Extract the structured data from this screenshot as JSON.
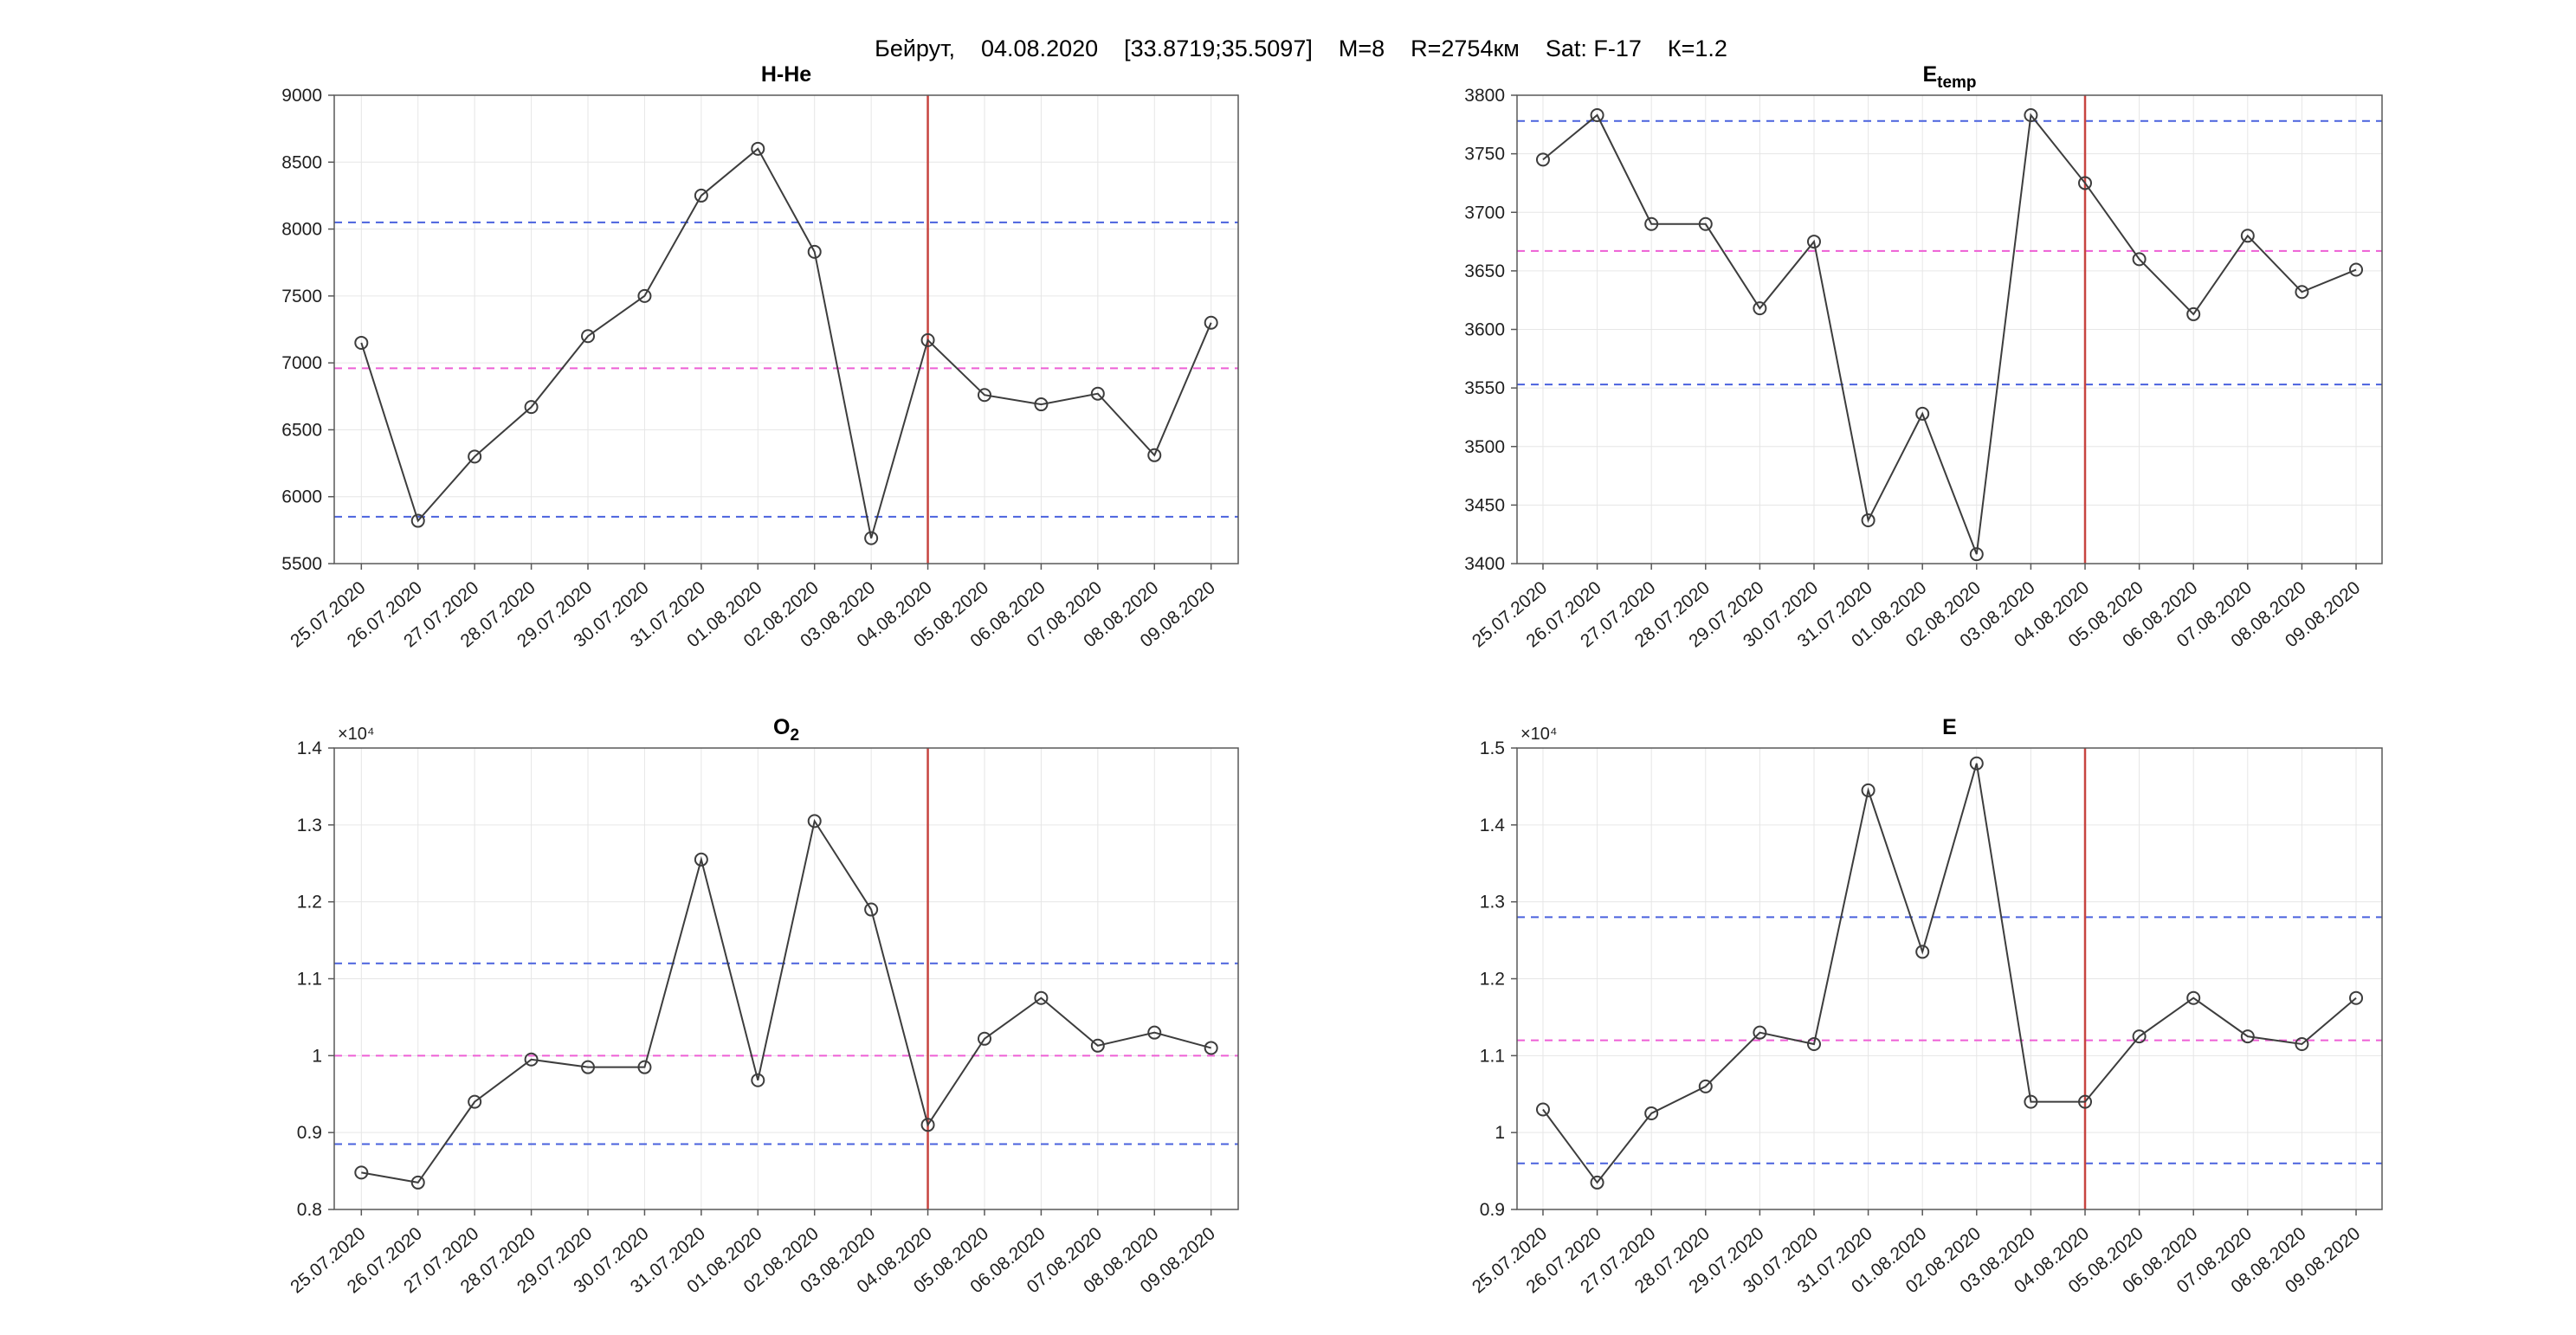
{
  "header": {
    "title": "Бейрут,    04.08.2020    [33.8719;35.5097]    М=8    R=2754км    Sat: F-17    К=1.2"
  },
  "colors": {
    "data_line": "#3d3d3d",
    "marker": "#3d3d3d",
    "bound_line": "#4a62de",
    "mean_line": "#ee5fd5",
    "event_line": "#c74440",
    "grid": "#e6e6e6",
    "axis": "#585858",
    "text": "#1f1f1f"
  },
  "chart_data": [
    {
      "type": "line",
      "title": {
        "main": "H-He",
        "sub": ""
      },
      "xlabel": "",
      "ylabel": "",
      "grid": true,
      "legend": false,
      "categories": [
        "25.07.2020",
        "26.07.2020",
        "27.07.2020",
        "28.07.2020",
        "29.07.2020",
        "30.07.2020",
        "31.07.2020",
        "01.08.2020",
        "02.08.2020",
        "03.08.2020",
        "04.08.2020",
        "05.08.2020",
        "06.08.2020",
        "07.08.2020",
        "08.08.2020",
        "09.08.2020"
      ],
      "values": [
        7150,
        5820,
        6300,
        6670,
        7200,
        7500,
        8250,
        8600,
        7830,
        5690,
        7170,
        6760,
        6690,
        6770,
        6310,
        7300
      ],
      "ylim": [
        5500,
        9000
      ],
      "yticks": [
        5500,
        6000,
        6500,
        7000,
        7500,
        8000,
        8500,
        9000
      ],
      "ytick_labels": [
        "5500",
        "6000",
        "6500",
        "7000",
        "7500",
        "8000",
        "8500",
        "9000"
      ],
      "upper_bound": 8050,
      "lower_bound": 5850,
      "mean_line": 6960,
      "event_category": "04.08.2020",
      "y_exponent_label": ""
    },
    {
      "type": "line",
      "title": {
        "main": "E",
        "sub": "temp"
      },
      "xlabel": "",
      "ylabel": "",
      "grid": true,
      "legend": false,
      "categories": [
        "25.07.2020",
        "26.07.2020",
        "27.07.2020",
        "28.07.2020",
        "29.07.2020",
        "30.07.2020",
        "31.07.2020",
        "01.08.2020",
        "02.08.2020",
        "03.08.2020",
        "04.08.2020",
        "05.08.2020",
        "06.08.2020",
        "07.08.2020",
        "08.08.2020",
        "09.08.2020"
      ],
      "values": [
        3745,
        3783,
        3690,
        3690,
        3618,
        3675,
        3437,
        3528,
        3408,
        3783,
        3725,
        3660,
        3613,
        3680,
        3632,
        3651
      ],
      "ylim": [
        3400,
        3800
      ],
      "yticks": [
        3400,
        3450,
        3500,
        3550,
        3600,
        3650,
        3700,
        3750,
        3800
      ],
      "ytick_labels": [
        "3400",
        "3450",
        "3500",
        "3550",
        "3600",
        "3650",
        "3700",
        "3750",
        "3800"
      ],
      "upper_bound": 3778,
      "lower_bound": 3553,
      "mean_line": 3667,
      "event_category": "04.08.2020",
      "y_exponent_label": ""
    },
    {
      "type": "line",
      "title": {
        "main": "O",
        "sub": "2"
      },
      "xlabel": "",
      "ylabel": "",
      "grid": true,
      "legend": false,
      "categories": [
        "25.07.2020",
        "26.07.2020",
        "27.07.2020",
        "28.07.2020",
        "29.07.2020",
        "30.07.2020",
        "31.07.2020",
        "01.08.2020",
        "02.08.2020",
        "03.08.2020",
        "04.08.2020",
        "05.08.2020",
        "06.08.2020",
        "07.08.2020",
        "08.08.2020",
        "09.08.2020"
      ],
      "values": [
        0.848,
        0.835,
        0.94,
        0.995,
        0.985,
        0.985,
        1.255,
        0.968,
        1.305,
        1.19,
        0.91,
        1.022,
        1.075,
        1.013,
        1.03,
        1.01
      ],
      "ylim": [
        0.8,
        1.4
      ],
      "yticks": [
        0.8,
        0.9,
        1.0,
        1.1,
        1.2,
        1.3,
        1.4
      ],
      "ytick_labels": [
        "0.8",
        "0.9",
        "1",
        "1.1",
        "1.2",
        "1.3",
        "1.4"
      ],
      "upper_bound": 1.12,
      "lower_bound": 0.885,
      "mean_line": 1.0,
      "event_category": "04.08.2020",
      "y_exponent_label": "×10⁴"
    },
    {
      "type": "line",
      "title": {
        "main": "E",
        "sub": ""
      },
      "xlabel": "",
      "ylabel": "",
      "grid": true,
      "legend": false,
      "categories": [
        "25.07.2020",
        "26.07.2020",
        "27.07.2020",
        "28.07.2020",
        "29.07.2020",
        "30.07.2020",
        "31.07.2020",
        "01.08.2020",
        "02.08.2020",
        "03.08.2020",
        "04.08.2020",
        "05.08.2020",
        "06.08.2020",
        "07.08.2020",
        "08.08.2020",
        "09.08.2020"
      ],
      "values": [
        1.03,
        0.935,
        1.025,
        1.06,
        1.13,
        1.115,
        1.445,
        1.235,
        1.48,
        1.04,
        1.04,
        1.125,
        1.175,
        1.125,
        1.115,
        1.175
      ],
      "ylim": [
        0.9,
        1.5
      ],
      "yticks": [
        0.9,
        1.0,
        1.1,
        1.2,
        1.3,
        1.4,
        1.5
      ],
      "ytick_labels": [
        "0.9",
        "1",
        "1.1",
        "1.2",
        "1.3",
        "1.4",
        "1.5"
      ],
      "upper_bound": 1.28,
      "lower_bound": 0.96,
      "mean_line": 1.12,
      "event_category": "04.08.2020",
      "y_exponent_label": "×10⁴"
    }
  ]
}
